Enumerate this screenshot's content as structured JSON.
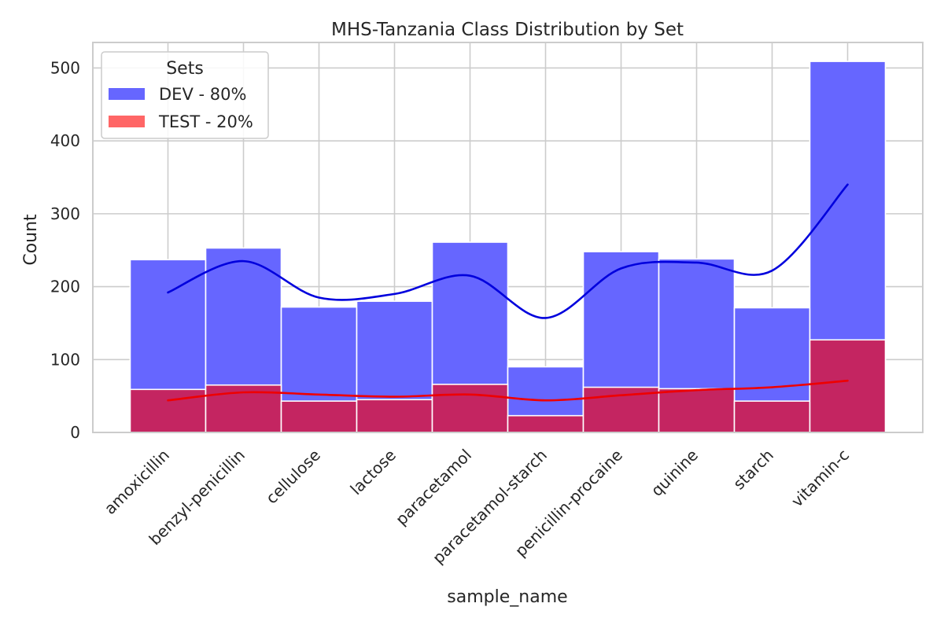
{
  "chart_data": {
    "type": "bar",
    "title": "MHS-Tanzania Class Distribution by Set",
    "xlabel": "sample_name",
    "ylabel": "Count",
    "ylim": [
      0,
      535
    ],
    "yticks": [
      0,
      100,
      200,
      300,
      400,
      500
    ],
    "grid": true,
    "legend_position": "top-left",
    "legend_title": "Sets",
    "categories": [
      "amoxicillin",
      "benzyl-penicillin",
      "cellulose",
      "lactose",
      "paracetamol",
      "paracetamol-starch",
      "penicillin-procaine",
      "quinine",
      "starch",
      "vitamin-c"
    ],
    "series": [
      {
        "name": "DEV - 80%",
        "color": "#6666ff",
        "kde_color": "#0000dd",
        "values": [
          237,
          253,
          172,
          180,
          261,
          90,
          248,
          238,
          171,
          509
        ],
        "kde": [
          192,
          235,
          185,
          190,
          215,
          157,
          225,
          233,
          222,
          340
        ]
      },
      {
        "name": "TEST - 20%",
        "color": "#c42561",
        "legend_color": "#ff6666",
        "kde_color": "#ee0000",
        "values": [
          59,
          65,
          43,
          45,
          66,
          23,
          62,
          60,
          43,
          127
        ],
        "kde": [
          44,
          55,
          52,
          49,
          52,
          44,
          51,
          58,
          62,
          71
        ]
      }
    ]
  }
}
